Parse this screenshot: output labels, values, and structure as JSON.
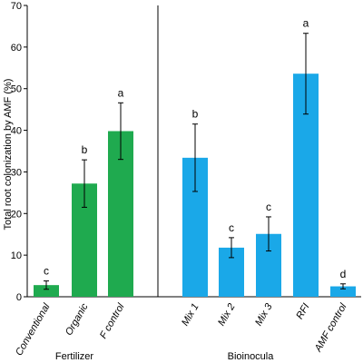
{
  "chart_data": {
    "type": "bar",
    "ylabel": "Total root colonization by AMF (%)",
    "ylim": [
      0,
      70
    ],
    "yticks": [
      0,
      10,
      20,
      30,
      40,
      50,
      60,
      70
    ],
    "grid": false,
    "legend": "none",
    "groups": [
      {
        "name": "Fertilizer",
        "color": "#1faa4f",
        "bars": [
          {
            "category": "Conventional",
            "value": 2.8,
            "error": 1.0,
            "significance": "c"
          },
          {
            "category": "Organic",
            "value": 27.2,
            "error": 5.7,
            "significance": "b"
          },
          {
            "category": "F control",
            "value": 39.8,
            "error": 6.8,
            "significance": "a"
          }
        ]
      },
      {
        "name": "Bioinocula",
        "color": "#1aa8e8",
        "bars": [
          {
            "category": "Mix 1",
            "value": 33.4,
            "error": 8.1,
            "significance": "b"
          },
          {
            "category": "Mix 2",
            "value": 11.8,
            "error": 2.4,
            "significance": "c"
          },
          {
            "category": "Mix 3",
            "value": 15.1,
            "error": 4.1,
            "significance": "c"
          },
          {
            "category": "RFI",
            "value": 53.6,
            "error": 9.7,
            "significance": "a"
          },
          {
            "category": "AMF control",
            "value": 2.5,
            "error": 0.6,
            "significance": "d"
          }
        ]
      }
    ]
  }
}
